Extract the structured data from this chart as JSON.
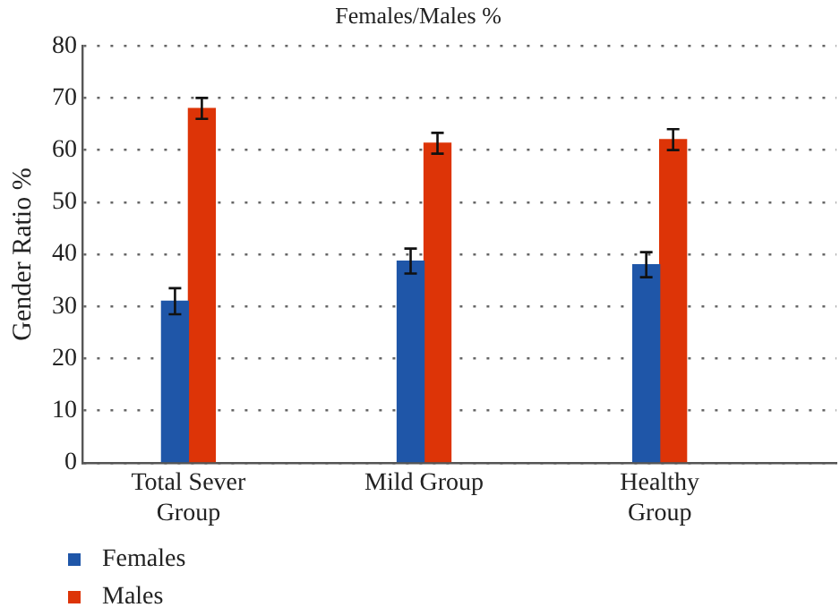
{
  "chart_data": {
    "type": "bar",
    "title": "Females/Males %",
    "ylabel": "Gender Ratio %",
    "categories": [
      "Total Sever Group",
      "Mild Group",
      "Healthy Group"
    ],
    "series": [
      {
        "name": "Females",
        "color": "#1f56a8",
        "values": [
          31,
          38.7,
          38
        ],
        "errors": [
          2.5,
          2.4,
          2.4
        ]
      },
      {
        "name": "Males",
        "color": "#dd3407",
        "values": [
          68,
          61.3,
          62
        ],
        "errors": [
          2,
          2,
          2
        ]
      }
    ],
    "ylim": [
      0,
      80
    ],
    "yticks": [
      0,
      10,
      20,
      30,
      40,
      50,
      60,
      70,
      80
    ],
    "grid": "y",
    "legend": "bottom left"
  }
}
